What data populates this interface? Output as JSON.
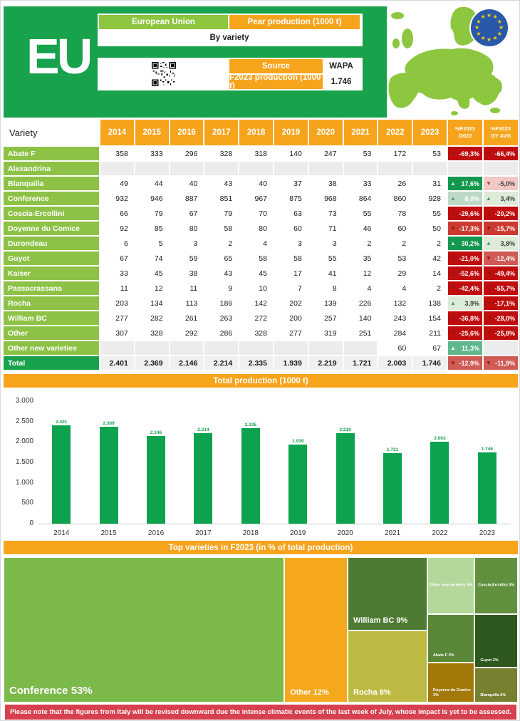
{
  "header": {
    "eu_label": "EU",
    "region_label": "European Union",
    "metric_label": "Pear production (1000 t)",
    "subtitle": "By variety",
    "source_label": "Source",
    "source_value": "WAPA",
    "f2023_label": "F2023 production (1000 t)",
    "f2023_value": "1.746"
  },
  "colors": {
    "header_green": "#17a24b",
    "light_green": "#8cc63e",
    "orange": "#f7a41d",
    "bar_green": "#0ca24e",
    "negative_red": "#bf0d0d",
    "positive_green": "#13984f",
    "footer_red": "#d6404f",
    "flag_blue": "#2a58a9",
    "flag_star_yellow": "#fccf08"
  },
  "table": {
    "variety_header": "Variety",
    "year_headers": [
      "2014",
      "2015",
      "2016",
      "2017",
      "2018",
      "2019",
      "2020",
      "2021",
      "2022",
      "2023"
    ],
    "pct_headers": [
      {
        "line1": "%F2023",
        "line2": "/2022"
      },
      {
        "line1": "%F2023",
        "line2": "/3Y AVG"
      }
    ],
    "rows": [
      {
        "name": "Abate F",
        "values": [
          "358",
          "333",
          "296",
          "328",
          "318",
          "140",
          "247",
          "53",
          "172",
          "53"
        ],
        "pct_2022": {
          "text": "-69,3%",
          "trend": "down",
          "style": "rdark"
        },
        "pct_3y": {
          "text": "-66,4%",
          "trend": "down",
          "style": "rdark"
        }
      },
      {
        "name": "Alexandrina",
        "values": [
          "",
          "",
          "",
          "",
          "",
          "",
          "",
          "",
          "",
          ""
        ],
        "pct_2022": {
          "text": "",
          "trend": "",
          "style": "empty"
        },
        "pct_3y": {
          "text": "",
          "trend": "",
          "style": "empty"
        }
      },
      {
        "name": "Blanquilla",
        "values": [
          "49",
          "44",
          "40",
          "43",
          "40",
          "37",
          "38",
          "33",
          "26",
          "31"
        ],
        "pct_2022": {
          "text": "17,6%",
          "trend": "up",
          "style": "gdark"
        },
        "pct_3y": {
          "text": "-5,0%",
          "trend": "down",
          "style": "pink"
        }
      },
      {
        "name": "Conference",
        "values": [
          "932",
          "946",
          "887",
          "851",
          "967",
          "875",
          "968",
          "864",
          "860",
          "928"
        ],
        "pct_2022": {
          "text": "8,0%",
          "trend": "up",
          "style": "gmidlight"
        },
        "pct_3y": {
          "text": "3,4%",
          "trend": "up",
          "style": "gpale"
        }
      },
      {
        "name": "Coscia-Ercollini",
        "values": [
          "66",
          "79",
          "67",
          "79",
          "70",
          "63",
          "73",
          "55",
          "78",
          "55"
        ],
        "pct_2022": {
          "text": "-29,6%",
          "trend": "down",
          "style": "rdark"
        },
        "pct_3y": {
          "text": "-20,2%",
          "trend": "down",
          "style": "rdark"
        }
      },
      {
        "name": "Doyenne du Comice",
        "values": [
          "92",
          "85",
          "80",
          "58",
          "80",
          "60",
          "71",
          "46",
          "60",
          "50"
        ],
        "pct_2022": {
          "text": "-17,3%",
          "trend": "down",
          "style": "rmid"
        },
        "pct_3y": {
          "text": "-15,7%",
          "trend": "down",
          "style": "rmid"
        }
      },
      {
        "name": "Durondeau",
        "values": [
          "6",
          "5",
          "3",
          "2",
          "4",
          "3",
          "3",
          "2",
          "2",
          "2"
        ],
        "pct_2022": {
          "text": "30,2%",
          "trend": "up",
          "style": "gdark"
        },
        "pct_3y": {
          "text": "3,8%",
          "trend": "up",
          "style": "gpale"
        }
      },
      {
        "name": "Guyot",
        "values": [
          "67",
          "74",
          "59",
          "65",
          "58",
          "58",
          "55",
          "35",
          "53",
          "42"
        ],
        "pct_2022": {
          "text": "-21,0%",
          "trend": "down",
          "style": "rdark"
        },
        "pct_3y": {
          "text": "-12,4%",
          "trend": "down",
          "style": "rlight"
        }
      },
      {
        "name": "Kaiser",
        "values": [
          "33",
          "45",
          "38",
          "43",
          "45",
          "17",
          "41",
          "12",
          "29",
          "14"
        ],
        "pct_2022": {
          "text": "-52,6%",
          "trend": "down",
          "style": "rdark"
        },
        "pct_3y": {
          "text": "-49,4%",
          "trend": "down",
          "style": "rdark"
        }
      },
      {
        "name": "Passacrassana",
        "values": [
          "11",
          "12",
          "11",
          "9",
          "10",
          "7",
          "8",
          "4",
          "4",
          "2"
        ],
        "pct_2022": {
          "text": "-42,4%",
          "trend": "down",
          "style": "rdark"
        },
        "pct_3y": {
          "text": "-55,7%",
          "trend": "down",
          "style": "rdark"
        }
      },
      {
        "name": "Rocha",
        "values": [
          "203",
          "134",
          "113",
          "186",
          "142",
          "202",
          "139",
          "226",
          "132",
          "138"
        ],
        "pct_2022": {
          "text": "3,9%",
          "trend": "up",
          "style": "gpale"
        },
        "pct_3y": {
          "text": "-17,1%",
          "trend": "down",
          "style": "rdark"
        }
      },
      {
        "name": "William BC",
        "values": [
          "277",
          "282",
          "261",
          "263",
          "272",
          "200",
          "257",
          "140",
          "243",
          "154"
        ],
        "pct_2022": {
          "text": "-36,8%",
          "trend": "down",
          "style": "rdark"
        },
        "pct_3y": {
          "text": "-28,0%",
          "trend": "down",
          "style": "rdark"
        }
      },
      {
        "name": "Other",
        "values": [
          "307",
          "328",
          "292",
          "286",
          "328",
          "277",
          "319",
          "251",
          "284",
          "211"
        ],
        "pct_2022": {
          "text": "-25,6%",
          "trend": "down",
          "style": "rdark"
        },
        "pct_3y": {
          "text": "-25,8%",
          "trend": "down",
          "style": "rdark"
        }
      },
      {
        "name": "Other new varieties",
        "values": [
          "",
          "",
          "",
          "",
          "",
          "",
          "",
          "",
          "60",
          "67"
        ],
        "pct_2022": {
          "text": "11,3%",
          "trend": "up",
          "style": "gmid"
        },
        "pct_3y": {
          "text": "",
          "trend": "",
          "style": "empty"
        }
      }
    ],
    "total": {
      "name": "Total",
      "values": [
        "2.401",
        "2.369",
        "2.146",
        "2.214",
        "2.335",
        "1.939",
        "2.219",
        "1.721",
        "2.003",
        "1.746"
      ],
      "pct_2022": {
        "text": "-12,9%",
        "trend": "down",
        "style": "rlight"
      },
      "pct_3y": {
        "text": "-11,9%",
        "trend": "down",
        "style": "rlight"
      }
    }
  },
  "chart_data": [
    {
      "type": "bar",
      "title": "Total production (1000 t)",
      "categories": [
        "2014",
        "2015",
        "2016",
        "2017",
        "2018",
        "2019",
        "2020",
        "2021",
        "2022",
        "2023"
      ],
      "values": [
        2401,
        2369,
        2146,
        2214,
        2335,
        1939,
        2219,
        1721,
        2003,
        1746
      ],
      "value_labels": [
        "2.401",
        "2.369",
        "2.146",
        "2.214",
        "2.335",
        "1.939",
        "2.219",
        "1.721",
        "2.003",
        "1.746"
      ],
      "xlabel": "",
      "ylabel": "",
      "ylim": [
        0,
        3000
      ],
      "grid": false,
      "legend": "none",
      "bar_color": "#0ca24e",
      "yticks": [
        {
          "label": "3.000",
          "value": 3000
        },
        {
          "label": "2.500",
          "value": 2500
        },
        {
          "label": "2.000",
          "value": 2000
        },
        {
          "label": "1.500",
          "value": 1500
        },
        {
          "label": "1.000",
          "value": 1000
        },
        {
          "label": "500",
          "value": 500
        },
        {
          "label": "0",
          "value": 0
        }
      ]
    },
    {
      "type": "treemap",
      "title": "Top varieties in F2023 (in % of total production)",
      "blocks": [
        {
          "label": "Conference 53%",
          "value_pct": 53,
          "color": "#7cb94b",
          "x": 0,
          "y": 0,
          "w": 54.6,
          "h": 100,
          "font": 15,
          "align": "bl"
        },
        {
          "label": "Other 12%",
          "value_pct": 12,
          "color": "#f6a81c",
          "x": 54.6,
          "y": 0,
          "w": 12.3,
          "h": 100,
          "font": 11,
          "align": "bl"
        },
        {
          "label": "William BC 9%",
          "value_pct": 9,
          "color": "#4e7b33",
          "x": 66.9,
          "y": 0,
          "w": 15.5,
          "h": 50.4,
          "font": 11,
          "align": "bl"
        },
        {
          "label": "Rocha 8%",
          "value_pct": 8,
          "color": "#bcba43",
          "x": 66.9,
          "y": 50.4,
          "w": 15.5,
          "h": 49.6,
          "font": 11,
          "align": "bl"
        },
        {
          "label": "Other new varieties 4%",
          "value_pct": 4,
          "color": "#b4d79a",
          "x": 82.4,
          "y": 0,
          "w": 9.2,
          "h": 39,
          "font": 5.5,
          "align": "center"
        },
        {
          "label": "Abate F 3%",
          "value_pct": 3,
          "color": "#5a8638",
          "x": 82.4,
          "y": 39,
          "w": 9.2,
          "h": 33.5,
          "font": 5.5,
          "align": "bl"
        },
        {
          "label": "Doyenne du Comice 3%",
          "value_pct": 3,
          "color": "#a3790a",
          "x": 82.4,
          "y": 72.5,
          "w": 9.2,
          "h": 27.5,
          "font": 5.5,
          "align": "bl"
        },
        {
          "label": "Coscia-Ercollini 3%",
          "value_pct": 3,
          "color": "#61913f",
          "x": 91.6,
          "y": 0,
          "w": 8.4,
          "h": 39,
          "font": 5.5,
          "align": "center"
        },
        {
          "label": "Guyot 2%",
          "value_pct": 2,
          "color": "#2e571e",
          "x": 91.6,
          "y": 39,
          "w": 8.4,
          "h": 37,
          "font": 5.5,
          "align": "bl"
        },
        {
          "label": "Blanquilla 2%",
          "value_pct": 2,
          "color": "#76802f",
          "x": 91.6,
          "y": 76,
          "w": 8.4,
          "h": 24,
          "font": 5.5,
          "align": "bl"
        }
      ]
    }
  ],
  "footer": {
    "note": "Please note that the figures from Italy will be revised downward due the intense climatic events of the last week of July, whose impact is yet to be assessed."
  }
}
